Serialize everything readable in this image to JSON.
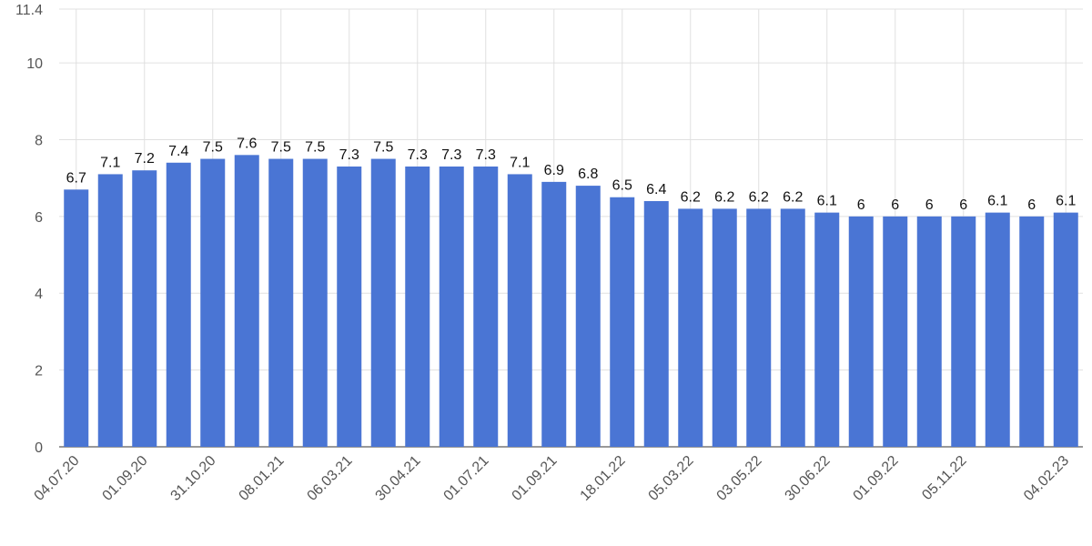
{
  "chart_data": {
    "type": "bar",
    "categories": [
      "04.07.20",
      null,
      "01.09.20",
      null,
      "31.10.20",
      null,
      "08.01.21",
      null,
      "06.03.21",
      null,
      "30.04.21",
      null,
      "01.07.21",
      null,
      "01.09.21",
      null,
      "18.01.22",
      null,
      "05.03.22",
      null,
      "03.05.22",
      null,
      "30.06.22",
      null,
      "01.09.22",
      null,
      "05.11.22",
      null,
      null,
      "04.02.23"
    ],
    "values": [
      6.7,
      7.1,
      7.2,
      7.4,
      7.5,
      7.6,
      7.5,
      7.5,
      7.3,
      7.5,
      7.3,
      7.3,
      7.3,
      7.1,
      6.9,
      6.8,
      6.5,
      6.4,
      6.2,
      6.2,
      6.2,
      6.2,
      6.1,
      6,
      6,
      6,
      6,
      6.1,
      6,
      6.1
    ],
    "color": "#4a75d4",
    "ylim": [
      0,
      11.4
    ],
    "yticks": [
      0,
      2,
      4,
      6,
      8,
      10,
      11.4
    ],
    "grid": true
  }
}
